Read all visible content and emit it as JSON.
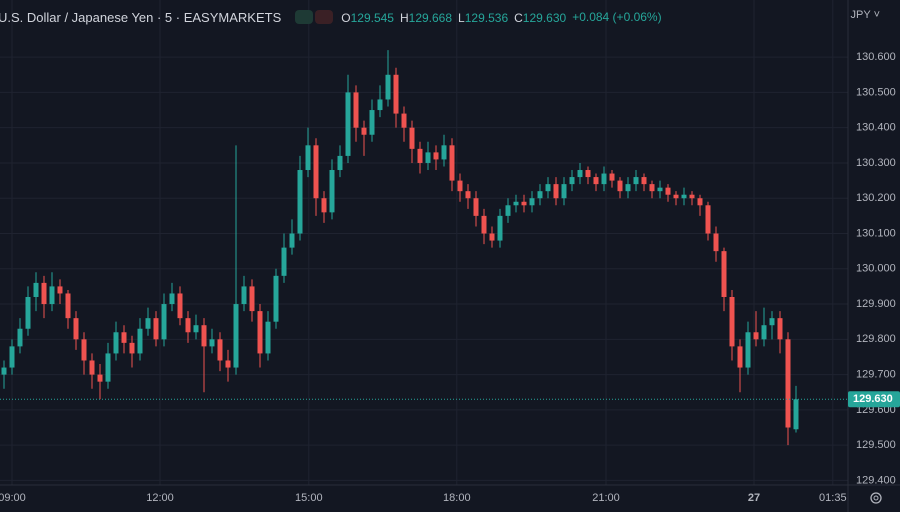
{
  "header": {
    "title": "U.S. Dollar / Japanese Yen · 5 · EASYMARKETS",
    "ohlc": [
      {
        "label": "O",
        "value": "129.545"
      },
      {
        "label": "H",
        "value": "129.668"
      },
      {
        "label": "L",
        "value": "129.536"
      },
      {
        "label": "C",
        "value": "129.630"
      }
    ],
    "change": "+0.084 (+0.06%)",
    "currency": "JPY"
  },
  "chart_data": {
    "type": "candlestick",
    "up_color": "#26a69a",
    "down_color": "#ef5350",
    "grid": true,
    "xlim": [
      -0.5,
      105.5
    ],
    "xticks": [
      {
        "value": 1,
        "label": "09:00"
      },
      {
        "value": 19.5,
        "label": "12:00"
      },
      {
        "value": 38.1,
        "label": "15:00"
      },
      {
        "value": 56.6,
        "label": "18:00"
      },
      {
        "value": 75.25,
        "label": "21:00"
      },
      {
        "value": 93.75,
        "label": "27"
      },
      {
        "value": 103.6,
        "label": "01:35"
      }
    ],
    "ylim": [
      129.387,
      130.762
    ],
    "yticks": [
      {
        "value": 129.4,
        "label": "129.400"
      },
      {
        "value": 129.5,
        "label": "129.500"
      },
      {
        "value": 129.6,
        "label": "129.600"
      },
      {
        "value": 129.7,
        "label": "129.700"
      },
      {
        "value": 129.8,
        "label": "129.800"
      },
      {
        "value": 129.9,
        "label": "129.900"
      },
      {
        "value": 130.0,
        "label": "130.000"
      },
      {
        "value": 130.1,
        "label": "130.100"
      },
      {
        "value": 130.2,
        "label": "130.200"
      },
      {
        "value": 130.3,
        "label": "130.300"
      },
      {
        "value": 130.4,
        "label": "130.400"
      },
      {
        "value": 130.5,
        "label": "130.500"
      },
      {
        "value": 130.6,
        "label": "130.600"
      }
    ],
    "last_price": {
      "value": 129.63,
      "label": "129.630"
    },
    "candles": [
      [
        129.7,
        129.74,
        129.66,
        129.72
      ],
      [
        129.72,
        129.8,
        129.7,
        129.78
      ],
      [
        129.78,
        129.86,
        129.76,
        129.83
      ],
      [
        129.83,
        129.95,
        129.81,
        129.92
      ],
      [
        129.92,
        129.99,
        129.88,
        129.96
      ],
      [
        129.96,
        129.98,
        129.86,
        129.9
      ],
      [
        129.9,
        129.99,
        129.88,
        129.95
      ],
      [
        129.95,
        129.97,
        129.9,
        129.93
      ],
      [
        129.93,
        129.94,
        129.83,
        129.86
      ],
      [
        129.86,
        129.88,
        129.77,
        129.8
      ],
      [
        129.8,
        129.82,
        129.7,
        129.74
      ],
      [
        129.74,
        129.76,
        129.66,
        129.7
      ],
      [
        129.7,
        129.73,
        129.63,
        129.68
      ],
      [
        129.68,
        129.79,
        129.66,
        129.76
      ],
      [
        129.76,
        129.85,
        129.74,
        129.82
      ],
      [
        129.82,
        129.84,
        129.76,
        129.79
      ],
      [
        129.79,
        129.81,
        129.72,
        129.76
      ],
      [
        129.76,
        129.86,
        129.74,
        129.83
      ],
      [
        129.83,
        129.89,
        129.81,
        129.86
      ],
      [
        129.86,
        129.88,
        129.78,
        129.8
      ],
      [
        129.8,
        129.93,
        129.78,
        129.9
      ],
      [
        129.9,
        129.96,
        129.88,
        129.93
      ],
      [
        129.93,
        129.95,
        129.84,
        129.86
      ],
      [
        129.86,
        129.88,
        129.79,
        129.82
      ],
      [
        129.82,
        129.87,
        129.8,
        129.84
      ],
      [
        129.84,
        129.86,
        129.65,
        129.78
      ],
      [
        129.78,
        129.83,
        129.76,
        129.8
      ],
      [
        129.8,
        129.82,
        129.71,
        129.74
      ],
      [
        129.74,
        129.77,
        129.68,
        129.72
      ],
      [
        129.72,
        130.35,
        129.7,
        129.9
      ],
      [
        129.9,
        129.98,
        129.88,
        129.95
      ],
      [
        129.95,
        129.97,
        129.85,
        129.88
      ],
      [
        129.88,
        129.9,
        129.72,
        129.76
      ],
      [
        129.76,
        129.88,
        129.74,
        129.85
      ],
      [
        129.85,
        130.0,
        129.83,
        129.98
      ],
      [
        129.98,
        130.1,
        129.96,
        130.06
      ],
      [
        130.06,
        130.14,
        130.04,
        130.1
      ],
      [
        130.1,
        130.32,
        130.08,
        130.28
      ],
      [
        130.28,
        130.4,
        130.26,
        130.35
      ],
      [
        130.35,
        130.37,
        130.15,
        130.2
      ],
      [
        130.2,
        130.22,
        130.13,
        130.16
      ],
      [
        130.16,
        130.31,
        130.14,
        130.28
      ],
      [
        130.28,
        130.35,
        130.26,
        130.32
      ],
      [
        130.32,
        130.55,
        130.3,
        130.5
      ],
      [
        130.5,
        130.52,
        130.36,
        130.4
      ],
      [
        130.4,
        130.42,
        130.32,
        130.38
      ],
      [
        130.38,
        130.48,
        130.36,
        130.45
      ],
      [
        130.45,
        130.52,
        130.43,
        130.48
      ],
      [
        130.48,
        130.62,
        130.46,
        130.55
      ],
      [
        130.55,
        130.57,
        130.4,
        130.44
      ],
      [
        130.44,
        130.46,
        130.36,
        130.4
      ],
      [
        130.4,
        130.42,
        130.3,
        130.34
      ],
      [
        130.34,
        130.36,
        130.27,
        130.3
      ],
      [
        130.3,
        130.36,
        130.28,
        130.33
      ],
      [
        130.33,
        130.35,
        130.28,
        130.31
      ],
      [
        130.31,
        130.38,
        130.29,
        130.35
      ],
      [
        130.35,
        130.37,
        130.22,
        130.25
      ],
      [
        130.25,
        130.27,
        130.19,
        130.22
      ],
      [
        130.22,
        130.24,
        130.17,
        130.2
      ],
      [
        130.2,
        130.22,
        130.12,
        130.15
      ],
      [
        130.15,
        130.17,
        130.07,
        130.1
      ],
      [
        130.1,
        130.12,
        130.06,
        130.08
      ],
      [
        130.08,
        130.17,
        130.06,
        130.15
      ],
      [
        130.15,
        130.2,
        130.13,
        130.18
      ],
      [
        130.18,
        130.21,
        130.16,
        130.19
      ],
      [
        130.19,
        130.21,
        130.16,
        130.18
      ],
      [
        130.18,
        130.22,
        130.16,
        130.2
      ],
      [
        130.2,
        130.24,
        130.18,
        130.22
      ],
      [
        130.22,
        130.26,
        130.2,
        130.24
      ],
      [
        130.24,
        130.26,
        130.18,
        130.2
      ],
      [
        130.2,
        130.26,
        130.18,
        130.24
      ],
      [
        130.24,
        130.28,
        130.22,
        130.26
      ],
      [
        130.26,
        130.3,
        130.24,
        130.28
      ],
      [
        130.28,
        130.29,
        130.24,
        130.26
      ],
      [
        130.26,
        130.27,
        130.22,
        130.24
      ],
      [
        130.24,
        130.29,
        130.22,
        130.27
      ],
      [
        130.27,
        130.28,
        130.23,
        130.25
      ],
      [
        130.25,
        130.26,
        130.2,
        130.22
      ],
      [
        130.22,
        130.26,
        130.2,
        130.24
      ],
      [
        130.24,
        130.28,
        130.22,
        130.26
      ],
      [
        130.26,
        130.27,
        130.22,
        130.24
      ],
      [
        130.24,
        130.25,
        130.2,
        130.22
      ],
      [
        130.22,
        130.25,
        130.2,
        130.23
      ],
      [
        130.23,
        130.24,
        130.19,
        130.21
      ],
      [
        130.21,
        130.22,
        130.18,
        130.2
      ],
      [
        130.2,
        130.23,
        130.18,
        130.21
      ],
      [
        130.21,
        130.22,
        130.18,
        130.2
      ],
      [
        130.2,
        130.21,
        130.15,
        130.18
      ],
      [
        130.18,
        130.19,
        130.08,
        130.1
      ],
      [
        130.1,
        130.12,
        130.02,
        130.05
      ],
      [
        130.05,
        130.06,
        129.88,
        129.92
      ],
      [
        129.92,
        129.94,
        129.74,
        129.78
      ],
      [
        129.78,
        129.8,
        129.65,
        129.72
      ],
      [
        129.72,
        129.85,
        129.7,
        129.82
      ],
      [
        129.82,
        129.88,
        129.78,
        129.8
      ],
      [
        129.8,
        129.89,
        129.78,
        129.84
      ],
      [
        129.84,
        129.88,
        129.8,
        129.86
      ],
      [
        129.86,
        129.88,
        129.76,
        129.8
      ],
      [
        129.8,
        129.82,
        129.5,
        129.55
      ],
      [
        129.545,
        129.668,
        129.536,
        129.63
      ]
    ]
  }
}
